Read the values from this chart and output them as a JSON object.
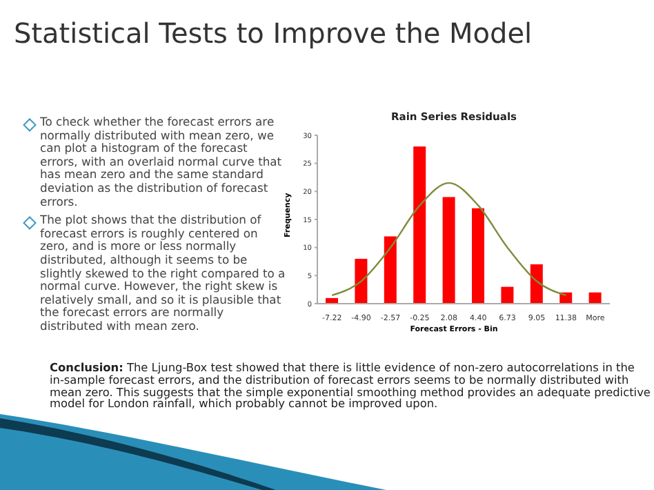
{
  "chart_data": {
    "type": "bar",
    "title": "Rain Series Residuals",
    "subtitle": "Statistical Tests to Improve the Model",
    "xlabel": "Forecast Errors - Bin",
    "ylabel": "Frequency",
    "categories": [
      "-7.22",
      "-4.90",
      "-2.57",
      "-0.25",
      "2.08",
      "4.40",
      "6.73",
      "9.05",
      "11.38",
      "More"
    ],
    "series": [
      {
        "color": "#ff0000",
        "values": [
          1,
          8,
          12,
          28,
          19,
          17,
          3,
          7,
          2,
          2
        ]
      },
      {
        "type": "line",
        "color": "#7f8c3c",
        "values": [
          1.5,
          4,
          10,
          17.5,
          21.5,
          17.5,
          10,
          4,
          1.5,
          null
        ]
      }
    ],
    "ylim": [
      0,
      30
    ],
    "yticks": [
      0,
      5,
      10,
      15,
      20,
      25,
      30
    ],
    "grid": false,
    "legend": false,
    "marker": "none",
    "line_style": "solid",
    "annotations": [
      "To check whether the forecast errors are normally distributed with mean zero, we can plot a histogram of the forecast errors, with an overlaid normal curve that has mean zero and the same standard deviation as the distribution of forecast errors.",
      "The plot shows that the distribution of forecast errors is roughly centered on zero, and is more or less normally distributed, although it seems to be slightly skewed to the right compared to a normal curve. However, the right skew is relatively small, and so it is plausible that the forecast errors are normally distributed with mean zero.",
      "Conclusion: The Ljung-Box test showed that there is little evidence of non-zero autocorrelations in the in-sample forecast errors, and the distribution of forecast errors seems to be normally distributed with mean zero. This suggests that the simple exponential smoothing method provides an adequate predictive model for London rainfall, which probably cannot be improved upon."
    ]
  }
}
